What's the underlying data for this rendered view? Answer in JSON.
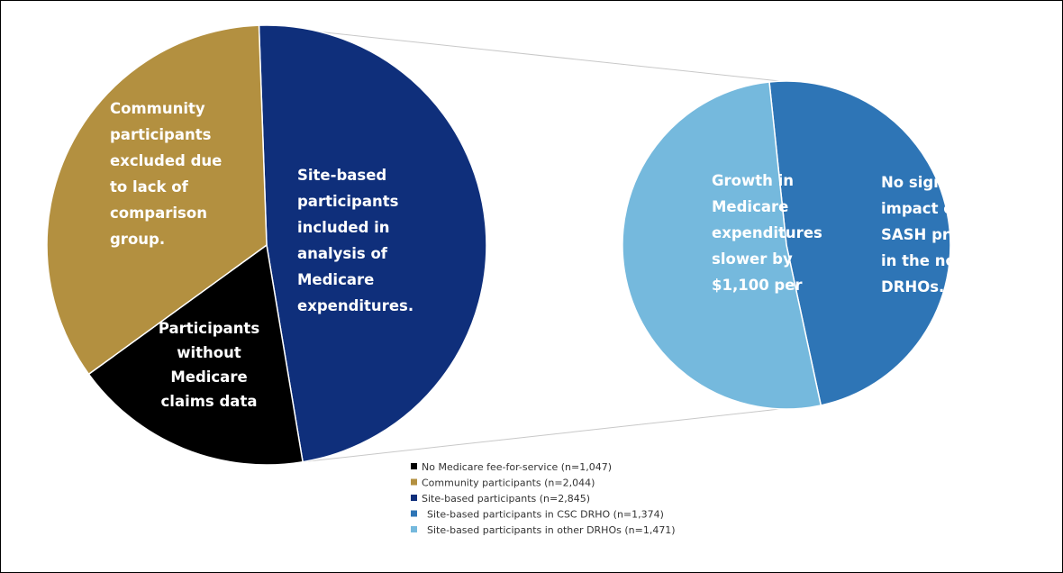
{
  "chart_data": {
    "type": "pie",
    "main_pie": {
      "slices": [
        {
          "key": "site",
          "value": 2845,
          "color": "#0f2f7b",
          "label_lines": [
            "Site-based",
            "participants",
            "included in",
            "analysis of",
            "Medicare",
            "expenditures."
          ]
        },
        {
          "key": "nomedicare",
          "value": 1047,
          "color": "#000000",
          "label_lines": [
            "Participants",
            "without",
            "Medicare",
            "claims data"
          ]
        },
        {
          "key": "community",
          "value": 2044,
          "color": "#b39040",
          "label_lines": [
            "Community",
            "participants",
            "excluded due",
            "to lack of",
            "comparison",
            "group."
          ]
        }
      ]
    },
    "detail_pie": {
      "slices": [
        {
          "key": "csc",
          "value": 1374,
          "color": "#2e75b6",
          "label_lines": [
            "Growth in",
            "Medicare",
            "expenditures",
            "slower by",
            "$1,100 per"
          ]
        },
        {
          "key": "other",
          "value": 1471,
          "color": "#75b9dd",
          "label_lines": [
            "No significant",
            "impact of the",
            "SASH program",
            "in the non-CSC",
            "DRHOs."
          ]
        }
      ]
    },
    "legend": [
      {
        "label": "No Medicare fee-for-service (n=1,047)",
        "color": "#000000"
      },
      {
        "label": "Community participants (n=2,044)",
        "color": "#b39040"
      },
      {
        "label": "Site-based participants (n=2,845)",
        "color": "#0f2f7b"
      },
      {
        "label": "Site-based participants in CSC DRHO (n=1,374)",
        "color": "#2e75b6"
      },
      {
        "label": "Site-based participants in other DRHOs (n=1,471)",
        "color": "#75b9dd"
      }
    ]
  }
}
